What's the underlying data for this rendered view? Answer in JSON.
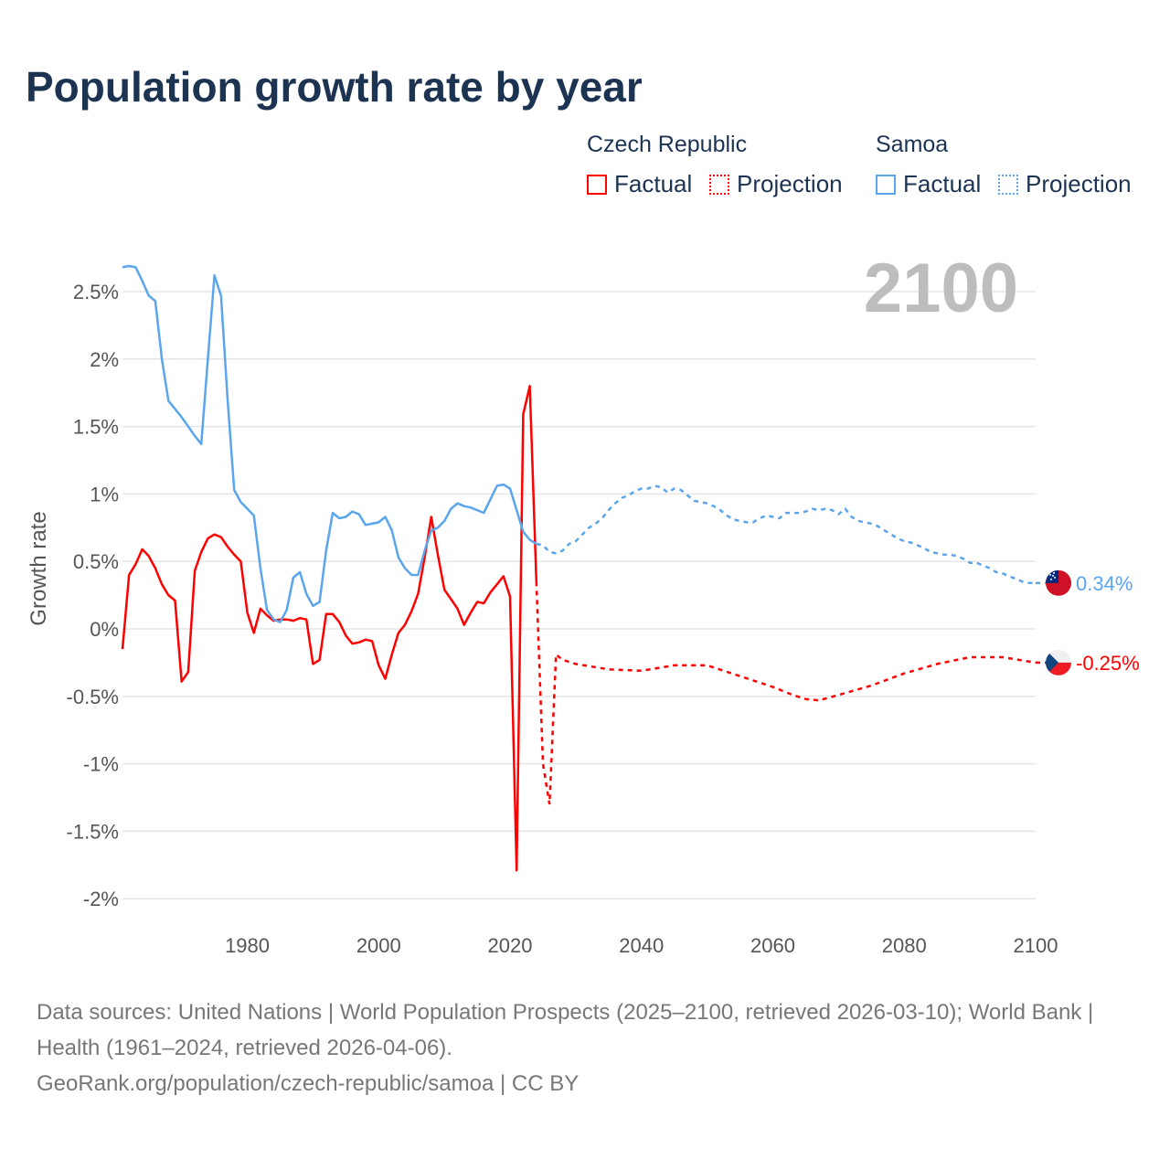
{
  "chart_data": {
    "type": "line",
    "title": "Population growth rate by year",
    "ylabel": "Growth rate",
    "xlabel": "",
    "xlim": [
      1961,
      2100
    ],
    "ylim": [
      -2.1,
      2.8
    ],
    "y_ticks": [
      2.5,
      2,
      1.5,
      1,
      0.5,
      0,
      -0.5,
      -1,
      -1.5,
      -2
    ],
    "y_tick_labels": [
      "2.5%",
      "2%",
      "1.5%",
      "1%",
      "0.5%",
      "0%",
      "-0.5%",
      "-1%",
      "-1.5%",
      "-2%"
    ],
    "x_ticks": [
      1980,
      2000,
      2020,
      2040,
      2060,
      2080,
      2100
    ],
    "x_tick_labels": [
      "1980",
      "2000",
      "2020",
      "2040",
      "2060",
      "2080",
      "2100"
    ],
    "grid": true,
    "current_year_label": "2100",
    "legend": {
      "placement": "top-right",
      "groups": [
        {
          "name": "Czech Republic",
          "factual": "Factual",
          "projection": "Projection"
        },
        {
          "name": "Samoa",
          "factual": "Factual",
          "projection": "Projection"
        }
      ]
    },
    "series": [
      {
        "name": "Czech Republic",
        "color": "#ff0000",
        "end_label": "-0.25%",
        "factual": {
          "x": [
            1961,
            1962,
            1963,
            1964,
            1965,
            1966,
            1967,
            1968,
            1969,
            1970,
            1971,
            1972,
            1973,
            1974,
            1975,
            1976,
            1977,
            1978,
            1979,
            1980,
            1981,
            1982,
            1983,
            1984,
            1985,
            1986,
            1987,
            1988,
            1989,
            1990,
            1991,
            1992,
            1993,
            1994,
            1995,
            1996,
            1997,
            1998,
            1999,
            2000,
            2001,
            2002,
            2003,
            2004,
            2005,
            2006,
            2007,
            2008,
            2009,
            2010,
            2011,
            2012,
            2013,
            2014,
            2015,
            2016,
            2017,
            2018,
            2019,
            2020,
            2021,
            2022,
            2023,
            2024
          ],
          "y": [
            -0.15,
            0.4,
            0.48,
            0.59,
            0.54,
            0.45,
            0.33,
            0.25,
            0.21,
            -0.39,
            -0.32,
            0.43,
            0.57,
            0.67,
            0.7,
            0.68,
            0.61,
            0.55,
            0.5,
            0.12,
            -0.03,
            0.15,
            0.1,
            0.06,
            0.07,
            0.07,
            0.06,
            0.08,
            0.07,
            -0.26,
            -0.23,
            0.11,
            0.11,
            0.05,
            -0.05,
            -0.11,
            -0.1,
            -0.08,
            -0.09,
            -0.27,
            -0.37,
            -0.19,
            -0.03,
            0.03,
            0.13,
            0.26,
            0.53,
            0.83,
            0.55,
            0.29,
            0.22,
            0.15,
            0.03,
            0.12,
            0.2,
            0.19,
            0.27,
            0.33,
            0.39,
            0.24,
            -1.79,
            1.59,
            1.8,
            0.35
          ]
        },
        "projection": {
          "x": [
            2024,
            2025,
            2026,
            2027,
            2028,
            2030,
            2035,
            2040,
            2045,
            2050,
            2055,
            2060,
            2063,
            2065,
            2067,
            2070,
            2075,
            2080,
            2085,
            2088,
            2090,
            2095,
            2100
          ],
          "y": [
            0.35,
            -1.0,
            -1.3,
            -0.19,
            -0.23,
            -0.26,
            -0.3,
            -0.31,
            -0.27,
            -0.27,
            -0.35,
            -0.43,
            -0.49,
            -0.52,
            -0.53,
            -0.49,
            -0.42,
            -0.33,
            -0.26,
            -0.23,
            -0.21,
            -0.21,
            -0.25
          ]
        }
      },
      {
        "name": "Samoa",
        "color": "#5aa5ec",
        "end_label": "0.34%",
        "factual": {
          "x": [
            1961,
            1962,
            1963,
            1964,
            1965,
            1966,
            1967,
            1968,
            1969,
            1970,
            1971,
            1972,
            1973,
            1974,
            1975,
            1976,
            1977,
            1978,
            1979,
            1980,
            1981,
            1982,
            1983,
            1984,
            1985,
            1986,
            1987,
            1988,
            1989,
            1990,
            1991,
            1992,
            1993,
            1994,
            1995,
            1996,
            1997,
            1998,
            1999,
            2000,
            2001,
            2002,
            2003,
            2004,
            2005,
            2006,
            2007,
            2008,
            2009,
            2010,
            2011,
            2012,
            2013,
            2014,
            2015,
            2016,
            2017,
            2018,
            2019,
            2020,
            2021,
            2022,
            2023,
            2024
          ],
          "y": [
            2.68,
            2.69,
            2.68,
            2.58,
            2.47,
            2.43,
            2.0,
            1.69,
            1.63,
            1.57,
            1.5,
            1.43,
            1.37,
            2.0,
            2.62,
            2.47,
            1.7,
            1.03,
            0.94,
            0.89,
            0.84,
            0.45,
            0.14,
            0.07,
            0.05,
            0.14,
            0.38,
            0.42,
            0.26,
            0.17,
            0.2,
            0.58,
            0.86,
            0.82,
            0.83,
            0.87,
            0.85,
            0.77,
            0.78,
            0.79,
            0.83,
            0.73,
            0.53,
            0.45,
            0.4,
            0.4,
            0.58,
            0.73,
            0.75,
            0.8,
            0.89,
            0.93,
            0.91,
            0.9,
            0.88,
            0.86,
            0.96,
            1.06,
            1.07,
            1.04,
            0.88,
            0.72,
            0.66,
            0.63
          ]
        },
        "projection": {
          "x": [
            2024,
            2025,
            2026,
            2027,
            2028,
            2029,
            2030,
            2031,
            2032,
            2033,
            2034,
            2035,
            2036,
            2037,
            2038,
            2039,
            2040,
            2041,
            2042,
            2043,
            2044,
            2045,
            2046,
            2047,
            2048,
            2049,
            2050,
            2051,
            2052,
            2053,
            2054,
            2055,
            2056,
            2057,
            2058,
            2059,
            2060,
            2061,
            2062,
            2063,
            2064,
            2065,
            2066,
            2067,
            2068,
            2069,
            2070,
            2071,
            2072,
            2073,
            2074,
            2075,
            2076,
            2077,
            2078,
            2079,
            2080,
            2081,
            2082,
            2083,
            2084,
            2085,
            2086,
            2087,
            2088,
            2089,
            2090,
            2091,
            2092,
            2093,
            2094,
            2095,
            2096,
            2097,
            2098,
            2099,
            2100
          ],
          "y": [
            0.63,
            0.62,
            0.57,
            0.56,
            0.58,
            0.63,
            0.65,
            0.7,
            0.75,
            0.78,
            0.82,
            0.88,
            0.93,
            0.97,
            0.99,
            1.02,
            1.04,
            1.04,
            1.06,
            1.05,
            1.01,
            1.04,
            1.03,
            0.99,
            0.95,
            0.94,
            0.93,
            0.91,
            0.88,
            0.84,
            0.81,
            0.8,
            0.79,
            0.79,
            0.82,
            0.84,
            0.83,
            0.82,
            0.86,
            0.86,
            0.86,
            0.87,
            0.89,
            0.88,
            0.89,
            0.88,
            0.85,
            0.89,
            0.83,
            0.8,
            0.79,
            0.78,
            0.76,
            0.73,
            0.7,
            0.67,
            0.65,
            0.64,
            0.62,
            0.6,
            0.57,
            0.56,
            0.55,
            0.55,
            0.54,
            0.52,
            0.49,
            0.49,
            0.47,
            0.45,
            0.42,
            0.41,
            0.39,
            0.37,
            0.35,
            0.34,
            0.34
          ]
        }
      }
    ]
  },
  "footer": {
    "sources": "Data sources: United Nations | World Population Prospects (2025–2100, retrieved 2026-03-10); World Bank | Health (1961–2024, retrieved 2026-04-06).",
    "attribution": "GeoRank.org/population/czech-republic/samoa | CC BY"
  }
}
